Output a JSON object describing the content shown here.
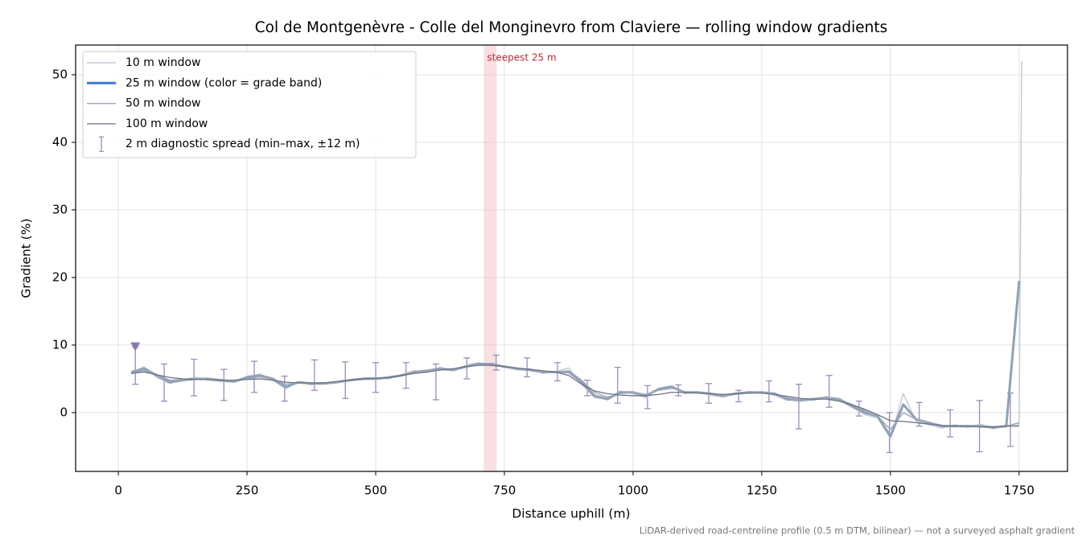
{
  "chart_data": {
    "type": "line",
    "title": "Col de Montgenèvre - Colle del Monginevro from Claviere — rolling window gradients",
    "xlabel": "Distance uphill (m)",
    "ylabel": "Gradient (%)",
    "footnote": "LiDAR-derived road-centreline profile (0.5 m DTM, bilinear) — not a surveyed asphalt gradient",
    "xlim": [
      -83,
      1844
    ],
    "ylim": [
      -8.7,
      54.4
    ],
    "xticks": [
      0,
      250,
      500,
      750,
      1000,
      1250,
      1500,
      1750
    ],
    "yticks": [
      0,
      10,
      20,
      30,
      40,
      50
    ],
    "grid": true,
    "legend": "upper left",
    "x": [
      25,
      50,
      75,
      100,
      125,
      150,
      175,
      200,
      225,
      250,
      275,
      300,
      325,
      350,
      375,
      400,
      425,
      450,
      475,
      500,
      525,
      550,
      575,
      600,
      625,
      650,
      675,
      700,
      725,
      750,
      775,
      800,
      825,
      850,
      875,
      900,
      925,
      950,
      975,
      1000,
      1025,
      1050,
      1075,
      1100,
      1125,
      1150,
      1175,
      1200,
      1225,
      1250,
      1275,
      1300,
      1325,
      1350,
      1375,
      1400,
      1425,
      1450,
      1475,
      1500,
      1525,
      1550,
      1575,
      1600,
      1625,
      1650,
      1675,
      1700,
      1725,
      1750,
      1755
    ],
    "series": [
      {
        "name": "10 m window",
        "color": "#c3cad8",
        "width": 1.5,
        "values": [
          5.8,
          6.8,
          5.2,
          4.3,
          4.9,
          5.2,
          4.8,
          4.6,
          4.5,
          5.4,
          5.7,
          4.8,
          3.5,
          4.6,
          4.1,
          4.4,
          4.6,
          4.9,
          5.1,
          5.2,
          5.0,
          5.6,
          6.2,
          6.0,
          6.7,
          6.2,
          7.0,
          7.4,
          7.0,
          6.9,
          6.3,
          6.5,
          5.8,
          6.1,
          6.6,
          4.2,
          2.2,
          2.0,
          3.2,
          2.8,
          2.2,
          3.6,
          4.0,
          2.8,
          3.1,
          2.6,
          2.3,
          2.9,
          3.1,
          3.0,
          2.6,
          1.8,
          2.0,
          1.8,
          2.4,
          1.8,
          0.8,
          -0.3,
          -0.8,
          -3.8,
          2.8,
          -1.3,
          -1.8,
          -2.3,
          -1.8,
          -2.2,
          -1.7,
          -2.4,
          -1.9,
          -1.8,
          52
        ]
      },
      {
        "name": "25 m window (color = grade band)",
        "color": "#8fa1b4",
        "legend_color": "#3a78d8",
        "width": 3,
        "values": [
          6.0,
          6.5,
          5.5,
          4.5,
          4.8,
          5.0,
          5.0,
          4.8,
          4.6,
          5.2,
          5.5,
          5.0,
          3.8,
          4.5,
          4.3,
          4.3,
          4.5,
          4.8,
          5.0,
          5.0,
          5.2,
          5.5,
          6.0,
          6.2,
          6.5,
          6.3,
          6.8,
          7.2,
          7.2,
          6.8,
          6.5,
          6.3,
          6.0,
          6.0,
          6.0,
          4.5,
          2.5,
          2.0,
          3.0,
          3.0,
          2.5,
          3.5,
          3.8,
          3.0,
          3.0,
          2.8,
          2.5,
          2.8,
          3.0,
          3.0,
          2.8,
          2.0,
          1.8,
          2.0,
          2.2,
          2.0,
          1.0,
          0.0,
          -0.5,
          -3.5,
          1.2,
          -1.0,
          -1.5,
          -2.0,
          -2.0,
          -2.0,
          -2.0,
          -2.2,
          -2.0,
          19.5,
          null
        ]
      },
      {
        "name": "50 m window",
        "color": "#a0a9ba",
        "width": 1.5,
        "values": [
          5.8,
          6.2,
          5.6,
          4.8,
          4.9,
          5.0,
          5.0,
          4.8,
          4.7,
          5.0,
          5.3,
          4.9,
          4.2,
          4.4,
          4.4,
          4.4,
          4.5,
          4.8,
          5.0,
          5.0,
          5.2,
          5.5,
          5.9,
          6.2,
          6.4,
          6.4,
          6.8,
          7.1,
          7.0,
          6.8,
          6.5,
          6.3,
          6.0,
          6.0,
          6.2,
          4.8,
          3.0,
          2.3,
          2.8,
          3.0,
          2.7,
          3.3,
          3.6,
          3.1,
          3.0,
          2.8,
          2.6,
          2.8,
          3.0,
          3.0,
          2.8,
          2.2,
          1.9,
          2.0,
          2.2,
          2.0,
          1.2,
          0.3,
          -0.5,
          -2.5,
          0.0,
          -1.0,
          -1.5,
          -1.9,
          -2.0,
          -2.0,
          -2.0,
          -2.1,
          -2.0,
          -1.5,
          null
        ]
      },
      {
        "name": "100 m window",
        "color": "#6b7283",
        "width": 1.3,
        "values": [
          5.8,
          6.0,
          5.6,
          5.2,
          5.0,
          4.9,
          4.9,
          4.8,
          4.8,
          4.9,
          5.0,
          4.8,
          4.5,
          4.4,
          4.4,
          4.4,
          4.6,
          4.8,
          5.0,
          5.1,
          5.2,
          5.5,
          5.8,
          6.0,
          6.3,
          6.5,
          6.8,
          7.0,
          7.0,
          6.8,
          6.6,
          6.4,
          6.2,
          6.0,
          5.5,
          4.2,
          3.2,
          2.8,
          2.6,
          2.5,
          2.5,
          2.7,
          3.0,
          3.0,
          2.9,
          2.8,
          2.7,
          2.8,
          2.9,
          2.9,
          2.7,
          2.4,
          2.1,
          2.0,
          2.0,
          1.7,
          1.2,
          0.5,
          -0.3,
          -1.2,
          -1.3,
          -1.5,
          -1.7,
          -1.9,
          -2.0,
          -2.0,
          -2.1,
          -2.1,
          -2.0,
          -2.0,
          null
        ]
      }
    ],
    "errorbars": {
      "name": "2 m diagnostic spread (min–max, ±12 m)",
      "color": "#9a8cbb",
      "x": [
        33,
        89,
        147,
        205,
        264,
        323,
        381,
        441,
        500,
        559,
        617,
        677,
        734,
        794,
        853,
        911,
        970,
        1028,
        1088,
        1147,
        1205,
        1264,
        1322,
        1381,
        1439,
        1498,
        1556,
        1616,
        1673,
        1733
      ],
      "min": [
        4.2,
        1.7,
        2.5,
        1.8,
        3.0,
        1.7,
        3.3,
        2.1,
        3.0,
        3.6,
        1.9,
        5.0,
        6.3,
        5.3,
        4.7,
        2.5,
        1.4,
        0.6,
        2.5,
        1.4,
        1.6,
        1.6,
        -2.4,
        0.8,
        -0.5,
        -5.9,
        -2.0,
        -3.6,
        -5.8,
        -5.0
      ],
      "max": [
        9.7,
        7.2,
        7.9,
        6.4,
        7.6,
        5.4,
        7.8,
        7.5,
        7.4,
        7.4,
        7.2,
        8.1,
        8.5,
        8.1,
        7.4,
        4.8,
        6.7,
        4.0,
        4.1,
        4.3,
        3.3,
        4.7,
        4.2,
        5.5,
        1.7,
        0.0,
        1.5,
        0.4,
        1.8,
        2.9
      ]
    },
    "marker": {
      "x": 33,
      "y": 9.8,
      "color": "#8a78ad"
    },
    "highlight": {
      "x": [
        710,
        735
      ],
      "label": "steepest 25 m",
      "color": "#e8a4ab",
      "label_color": "#c0283a"
    }
  }
}
